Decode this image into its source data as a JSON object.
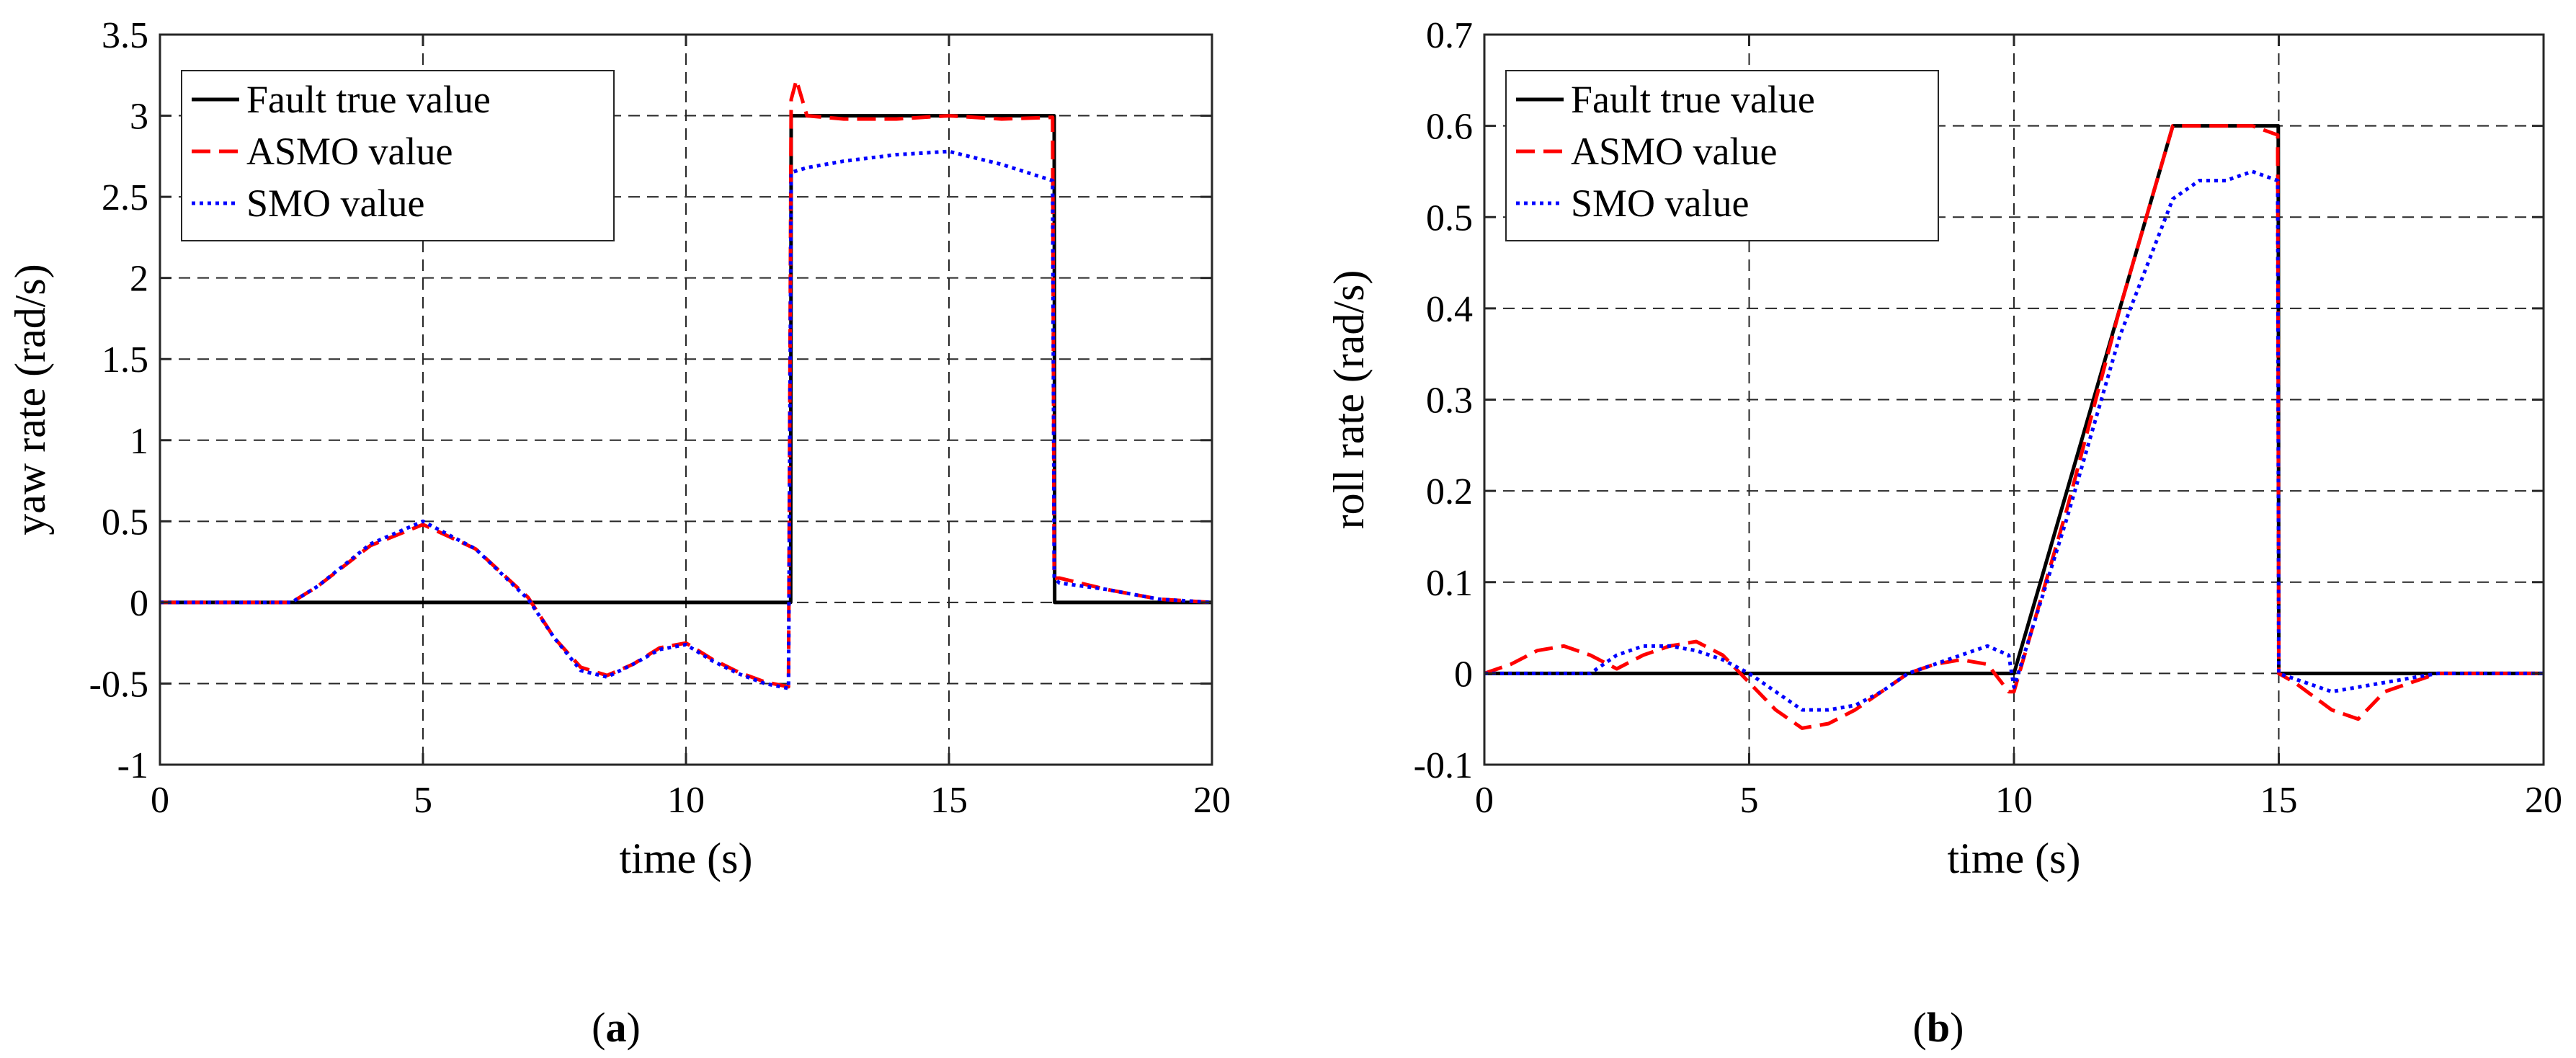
{
  "chart_data": [
    {
      "id": "a",
      "type": "line",
      "caption_open": "(",
      "caption_letter": "a",
      "caption_close": ")",
      "xlabel": "time (s)",
      "ylabel": "yaw rate (rad/s)",
      "xlim": [
        0,
        20
      ],
      "ylim": [
        -1,
        3.5
      ],
      "xticks": [
        0,
        5,
        10,
        15,
        20
      ],
      "yticks": [
        -1,
        -0.5,
        0,
        0.5,
        1,
        1.5,
        2,
        2.5,
        3,
        3.5
      ],
      "xtick_labels": [
        "0",
        "5",
        "10",
        "15",
        "20"
      ],
      "ytick_labels": [
        "-1",
        "-0.5",
        "0",
        "0.5",
        "1",
        "1.5",
        "2",
        "2.5",
        "3",
        "3.5"
      ],
      "grid": true,
      "legend": [
        "Fault true value",
        "ASMO value",
        "SMO value"
      ],
      "legend_position": "top-left",
      "series": [
        {
          "name": "Fault true value",
          "color": "#000000",
          "style": "solid",
          "x": [
            0,
            11.99,
            12,
            17,
            17.01,
            20
          ],
          "y": [
            0,
            0,
            3,
            3,
            0,
            0
          ]
        },
        {
          "name": "ASMO value",
          "color": "#ff0000",
          "style": "dashed",
          "x": [
            0,
            2.5,
            3,
            4,
            5,
            6,
            7,
            7.5,
            8,
            8.5,
            9,
            9.5,
            10,
            10.5,
            11,
            11.5,
            11.95,
            12,
            12.1,
            12.3,
            13,
            14,
            15,
            16,
            16.97,
            17,
            17.1,
            18,
            19,
            20
          ],
          "y": [
            0,
            0,
            0.1,
            0.35,
            0.48,
            0.33,
            0.03,
            -0.22,
            -0.4,
            -0.45,
            -0.38,
            -0.28,
            -0.25,
            -0.35,
            -0.43,
            -0.49,
            -0.52,
            3.1,
            3.22,
            3.0,
            2.98,
            2.98,
            3.0,
            2.98,
            2.99,
            0.15,
            0.15,
            0.08,
            0.02,
            0
          ]
        },
        {
          "name": "SMO value",
          "color": "#0000ff",
          "style": "dotted",
          "x": [
            0,
            2.5,
            3,
            4,
            5,
            6,
            7,
            7.5,
            8,
            8.5,
            9,
            9.5,
            10,
            10.5,
            11,
            11.5,
            11.95,
            12,
            12.3,
            13,
            14,
            15,
            16,
            16.97,
            17,
            17.1,
            18,
            19,
            20
          ],
          "y": [
            0,
            0,
            0.1,
            0.36,
            0.5,
            0.33,
            0.02,
            -0.22,
            -0.42,
            -0.46,
            -0.38,
            -0.29,
            -0.26,
            -0.36,
            -0.44,
            -0.5,
            -0.53,
            2.65,
            2.68,
            2.72,
            2.76,
            2.78,
            2.7,
            2.6,
            0.15,
            0.12,
            0.08,
            0.02,
            0
          ]
        }
      ]
    },
    {
      "id": "b",
      "type": "line",
      "caption_open": "(",
      "caption_letter": "b",
      "caption_close": ")",
      "xlabel": "time (s)",
      "ylabel": "roll rate (rad/s)",
      "xlim": [
        0,
        20
      ],
      "ylim": [
        -0.1,
        0.7
      ],
      "xticks": [
        0,
        5,
        10,
        15,
        20
      ],
      "yticks": [
        -0.1,
        0,
        0.1,
        0.2,
        0.3,
        0.4,
        0.5,
        0.6,
        0.7
      ],
      "xtick_labels": [
        "0",
        "5",
        "10",
        "15",
        "20"
      ],
      "ytick_labels": [
        "-0.1",
        "0",
        "0.1",
        "0.2",
        "0.3",
        "0.4",
        "0.5",
        "0.6",
        "0.7"
      ],
      "grid": true,
      "legend": [
        "Fault true value",
        "ASMO value",
        "SMO value"
      ],
      "legend_position": "top-left",
      "series": [
        {
          "name": "Fault true value",
          "color": "#000000",
          "style": "solid",
          "x": [
            0,
            10,
            13,
            14.99,
            15,
            20
          ],
          "y": [
            0,
            0,
            0.6,
            0.6,
            0,
            0
          ]
        },
        {
          "name": "ASMO value",
          "color": "#ff0000",
          "style": "dashed",
          "x": [
            0,
            0.5,
            1,
            1.5,
            2,
            2.5,
            3,
            3.5,
            4,
            4.5,
            5,
            5.5,
            6,
            6.5,
            7,
            7.5,
            8,
            8.5,
            9,
            9.5,
            9.9,
            10,
            11,
            12,
            13,
            13.5,
            14,
            14.5,
            14.98,
            15,
            15.3,
            16,
            16.5,
            17,
            17.5,
            18,
            19,
            20
          ],
          "y": [
            0,
            0.01,
            0.025,
            0.03,
            0.02,
            0.005,
            0.02,
            0.03,
            0.035,
            0.02,
            -0.01,
            -0.04,
            -0.06,
            -0.055,
            -0.04,
            -0.02,
            0,
            0.01,
            0.015,
            0.01,
            -0.02,
            -0.02,
            0.18,
            0.4,
            0.6,
            0.6,
            0.6,
            0.6,
            0.59,
            0,
            -0.01,
            -0.04,
            -0.05,
            -0.02,
            -0.01,
            0,
            0,
            0
          ]
        },
        {
          "name": "SMO value",
          "color": "#0000ff",
          "style": "dotted",
          "x": [
            0,
            1,
            2,
            2.5,
            3,
            3.5,
            4,
            4.5,
            5,
            5.5,
            6,
            6.5,
            7,
            7.5,
            8,
            8.5,
            9,
            9.5,
            9.9,
            10,
            11,
            12,
            13,
            13.5,
            14,
            14.5,
            14.98,
            15,
            15.5,
            16,
            17,
            18,
            19,
            20
          ],
          "y": [
            0,
            0,
            0,
            0.02,
            0.03,
            0.03,
            0.025,
            0.015,
            0,
            -0.02,
            -0.04,
            -0.04,
            -0.035,
            -0.02,
            0,
            0.01,
            0.02,
            0.03,
            0.02,
            -0.015,
            0.17,
            0.37,
            0.52,
            0.54,
            0.54,
            0.55,
            0.54,
            0,
            -0.01,
            -0.02,
            -0.01,
            0,
            0,
            0
          ]
        }
      ]
    }
  ]
}
